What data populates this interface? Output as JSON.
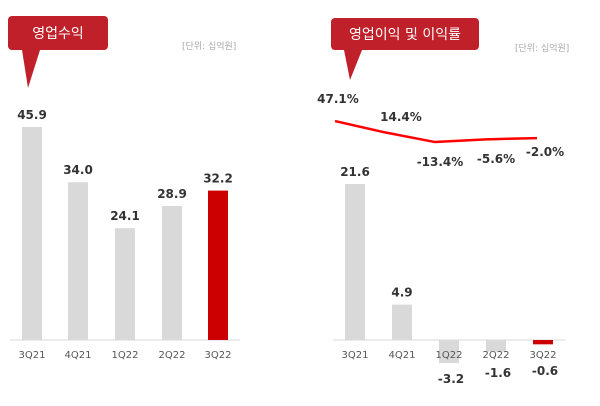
{
  "chart_data": [
    {
      "type": "bar",
      "title": "영업수익",
      "unit": "[단위: 십억원]",
      "categories": [
        "3Q21",
        "4Q21",
        "1Q22",
        "2Q22",
        "3Q22"
      ],
      "values": [
        45.9,
        34.0,
        24.1,
        28.9,
        32.2
      ],
      "value_labels": [
        "45.9",
        "34.0",
        "24.1",
        "28.9",
        "32.2"
      ],
      "highlight": "3Q22",
      "colors": {
        "bar": "#d9d9d9",
        "highlight": "#cc0000"
      }
    },
    {
      "type": "bar+line",
      "title": "영업이익 및 이익률",
      "unit": "[단위: 십억원]",
      "categories": [
        "3Q21",
        "4Q21",
        "1Q22",
        "2Q22",
        "3Q22"
      ],
      "values": [
        21.6,
        4.9,
        -3.2,
        -1.6,
        -0.6
      ],
      "value_labels": [
        "21.6",
        "4.9",
        "-3.2",
        "-1.6",
        "-0.6"
      ],
      "line_values": [
        47.1,
        14.4,
        -13.4,
        -5.6,
        -2.0
      ],
      "line_labels": [
        "47.1%",
        "14.4%",
        "-13.4%",
        "-5.6%",
        "-2.0%"
      ],
      "highlight": "3Q22",
      "colors": {
        "bar": "#d9d9d9",
        "highlight": "#cc0000",
        "line": "#ff0000",
        "callout": "#c0202a"
      }
    }
  ]
}
